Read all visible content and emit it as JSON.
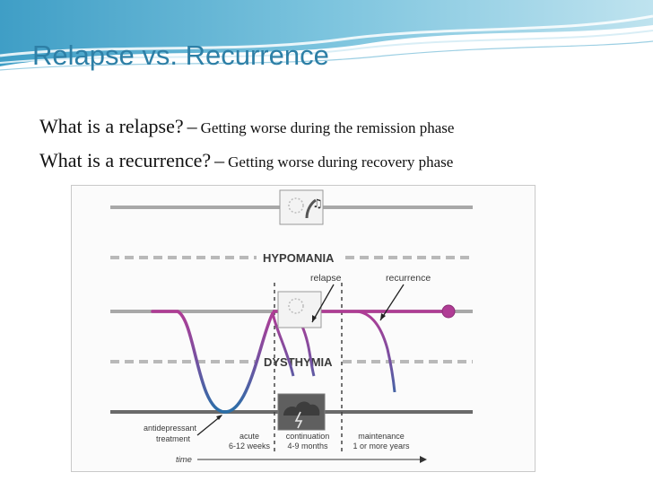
{
  "slide": {
    "title": "Relapse vs. Recurrence",
    "bullets": [
      {
        "question": "What is a relapse?",
        "separator": "–",
        "answer": "Getting worse during the remission phase"
      },
      {
        "question": "What is a recurrence?",
        "separator": "–",
        "answer": "Getting worse during recovery phase"
      }
    ]
  },
  "diagram": {
    "bands": {
      "upper": "HYPOMANIA",
      "lower": "DYSTHYMIA"
    },
    "annotations": {
      "relapse": "relapse",
      "recurrence": "recurrence",
      "antidepressant_line1": "antidepressant",
      "antidepressant_line2": "treatment"
    },
    "phases": [
      {
        "name": "acute",
        "duration": "6-12 weeks"
      },
      {
        "name": "continuation",
        "duration": "4-9 months"
      },
      {
        "name": "maintenance",
        "duration": "1 or more years"
      }
    ],
    "time_label": "time",
    "icons": [
      "sun-music-mood-icon",
      "sun-neutral-mood-icon",
      "storm-cloud-mood-icon"
    ],
    "colors": {
      "curve_top": "#b03c95",
      "curve_bottom": "#2a6fa8",
      "reference_line": "#a8a8a8",
      "dashed_band": "#b9b9b9",
      "baseline": "#6a6a6a",
      "endpoint_marker": "#b03c95"
    }
  }
}
